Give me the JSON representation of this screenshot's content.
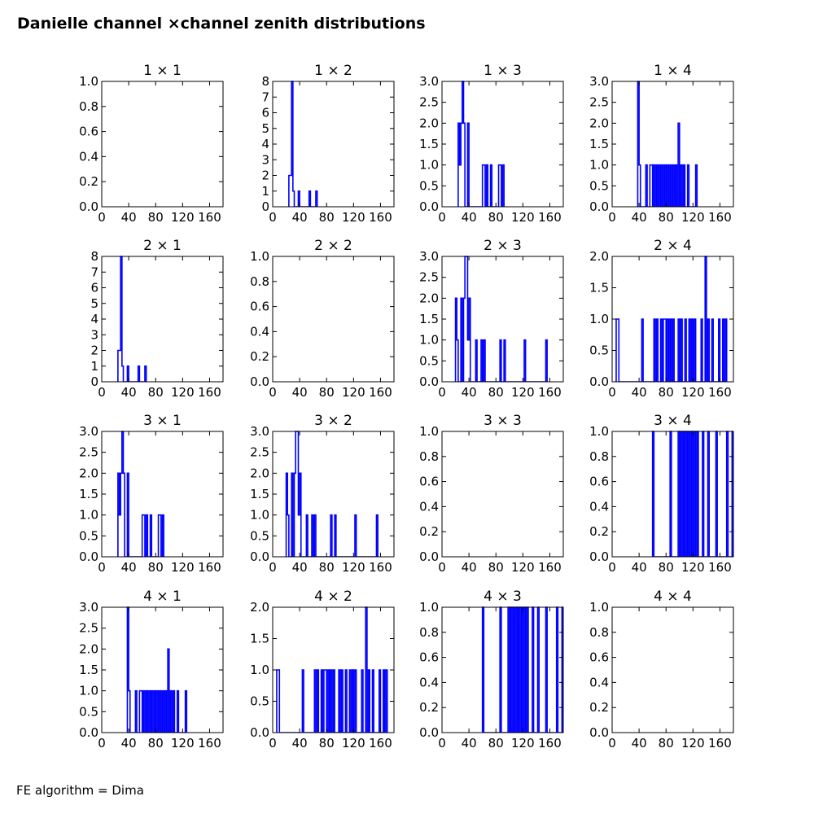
{
  "title": "Danielle channel ×channel zenith distributions",
  "footer": "FE algorithm = Dima",
  "colors": {
    "series": "#0000ff",
    "axes": "#000000",
    "background": "#ffffff"
  },
  "chart_data": [
    {
      "type": "line",
      "title": "1 × 1",
      "xlim": [
        0,
        180
      ],
      "xticks": [
        0,
        40,
        80,
        120,
        160
      ],
      "ylim": [
        0,
        1.0
      ],
      "yticks": [
        "0.0",
        "0.2",
        "0.4",
        "0.6",
        "0.8",
        "1.0"
      ],
      "bins": []
    },
    {
      "type": "line",
      "title": "1 × 2",
      "xlim": [
        0,
        180
      ],
      "xticks": [
        0,
        40,
        80,
        120,
        160
      ],
      "ylim": [
        0,
        8
      ],
      "yticks": [
        "0",
        "1",
        "2",
        "3",
        "4",
        "5",
        "6",
        "7",
        "8"
      ],
      "bins": [
        [
          24,
          26,
          2
        ],
        [
          26,
          28,
          2
        ],
        [
          28,
          30,
          8
        ],
        [
          30,
          32,
          1
        ],
        [
          38,
          40,
          1
        ],
        [
          54,
          56,
          1
        ],
        [
          64,
          66,
          1
        ]
      ]
    },
    {
      "type": "line",
      "title": "1 × 3",
      "xlim": [
        0,
        180
      ],
      "xticks": [
        0,
        40,
        80,
        120,
        160
      ],
      "ylim": [
        0,
        3.0
      ],
      "yticks": [
        "0.0",
        "0.5",
        "1.0",
        "1.5",
        "2.0",
        "2.5",
        "3.0"
      ],
      "bins": [
        [
          24,
          26,
          2
        ],
        [
          26,
          28,
          1
        ],
        [
          28,
          30,
          2
        ],
        [
          30,
          32,
          3
        ],
        [
          32,
          34,
          2
        ],
        [
          38,
          40,
          2
        ],
        [
          60,
          62,
          1
        ],
        [
          62,
          64,
          1
        ],
        [
          66,
          68,
          1
        ],
        [
          72,
          74,
          1
        ],
        [
          84,
          86,
          1
        ],
        [
          86,
          88,
          1
        ],
        [
          90,
          92,
          1
        ]
      ]
    },
    {
      "type": "line",
      "title": "1 × 4",
      "xlim": [
        0,
        180
      ],
      "xticks": [
        0,
        40,
        80,
        120,
        160
      ],
      "ylim": [
        0,
        3.0
      ],
      "yticks": [
        "0.0",
        "0.5",
        "1.0",
        "1.5",
        "2.0",
        "2.5",
        "3.0"
      ],
      "bins": [
        [
          38,
          40,
          3
        ],
        [
          40,
          42,
          1
        ],
        [
          50,
          52,
          1
        ],
        [
          56,
          58,
          1
        ],
        [
          58,
          60,
          1
        ],
        [
          62,
          64,
          1
        ],
        [
          66,
          68,
          1
        ],
        [
          70,
          72,
          1
        ],
        [
          74,
          76,
          1
        ],
        [
          78,
          80,
          1
        ],
        [
          82,
          84,
          1
        ],
        [
          86,
          88,
          1
        ],
        [
          90,
          92,
          1
        ],
        [
          94,
          96,
          1
        ],
        [
          98,
          100,
          2
        ],
        [
          102,
          104,
          1
        ],
        [
          106,
          108,
          1
        ],
        [
          112,
          114,
          1
        ],
        [
          124,
          126,
          1
        ]
      ]
    },
    {
      "type": "line",
      "title": "2 × 1",
      "xlim": [
        0,
        180
      ],
      "xticks": [
        0,
        40,
        80,
        120,
        160
      ],
      "ylim": [
        0,
        8
      ],
      "yticks": [
        "0",
        "1",
        "2",
        "3",
        "4",
        "5",
        "6",
        "7",
        "8"
      ],
      "bins": [
        [
          24,
          26,
          2
        ],
        [
          26,
          28,
          2
        ],
        [
          28,
          30,
          8
        ],
        [
          30,
          32,
          1
        ],
        [
          38,
          40,
          1
        ],
        [
          54,
          56,
          1
        ],
        [
          64,
          66,
          1
        ]
      ]
    },
    {
      "type": "line",
      "title": "2 × 2",
      "xlim": [
        0,
        180
      ],
      "xticks": [
        0,
        40,
        80,
        120,
        160
      ],
      "ylim": [
        0,
        1.0
      ],
      "yticks": [
        "0.0",
        "0.2",
        "0.4",
        "0.6",
        "0.8",
        "1.0"
      ],
      "bins": []
    },
    {
      "type": "line",
      "title": "2 × 3",
      "xlim": [
        0,
        180
      ],
      "xticks": [
        0,
        40,
        80,
        120,
        160
      ],
      "ylim": [
        0,
        3.0
      ],
      "yticks": [
        "0.0",
        "0.5",
        "1.0",
        "1.5",
        "2.0",
        "2.5",
        "3.0"
      ],
      "bins": [
        [
          20,
          22,
          2
        ],
        [
          22,
          24,
          1
        ],
        [
          28,
          30,
          2
        ],
        [
          32,
          34,
          2
        ],
        [
          34,
          36,
          3
        ],
        [
          36,
          38,
          3
        ],
        [
          38,
          40,
          1
        ],
        [
          40,
          42,
          2
        ],
        [
          50,
          52,
          1
        ],
        [
          58,
          60,
          1
        ],
        [
          62,
          64,
          1
        ],
        [
          86,
          88,
          1
        ],
        [
          92,
          94,
          1
        ],
        [
          122,
          124,
          1
        ],
        [
          154,
          156,
          1
        ]
      ]
    },
    {
      "type": "line",
      "title": "2 × 4",
      "xlim": [
        0,
        180
      ],
      "xticks": [
        0,
        40,
        80,
        120,
        160
      ],
      "ylim": [
        0,
        2.0
      ],
      "yticks": [
        "0.0",
        "0.5",
        "1.0",
        "1.5",
        "2.0"
      ],
      "bins": [
        [
          6,
          8,
          1
        ],
        [
          8,
          10,
          1
        ],
        [
          44,
          46,
          1
        ],
        [
          62,
          64,
          1
        ],
        [
          66,
          68,
          1
        ],
        [
          72,
          74,
          1
        ],
        [
          76,
          78,
          1
        ],
        [
          78,
          80,
          1
        ],
        [
          82,
          84,
          1
        ],
        [
          86,
          88,
          1
        ],
        [
          90,
          92,
          1
        ],
        [
          98,
          100,
          1
        ],
        [
          102,
          104,
          1
        ],
        [
          108,
          110,
          1
        ],
        [
          114,
          116,
          1
        ],
        [
          118,
          120,
          1
        ],
        [
          122,
          124,
          1
        ],
        [
          132,
          134,
          1
        ],
        [
          138,
          140,
          2
        ],
        [
          142,
          144,
          1
        ],
        [
          148,
          150,
          1
        ],
        [
          158,
          160,
          1
        ],
        [
          164,
          166,
          1
        ],
        [
          168,
          170,
          1
        ]
      ]
    },
    {
      "type": "line",
      "title": "3 × 1",
      "xlim": [
        0,
        180
      ],
      "xticks": [
        0,
        40,
        80,
        120,
        160
      ],
      "ylim": [
        0,
        3.0
      ],
      "yticks": [
        "0.0",
        "0.5",
        "1.0",
        "1.5",
        "2.0",
        "2.5",
        "3.0"
      ],
      "bins": [
        [
          24,
          26,
          2
        ],
        [
          26,
          28,
          1
        ],
        [
          28,
          30,
          2
        ],
        [
          30,
          32,
          3
        ],
        [
          32,
          34,
          2
        ],
        [
          38,
          40,
          2
        ],
        [
          60,
          62,
          1
        ],
        [
          62,
          64,
          1
        ],
        [
          66,
          68,
          1
        ],
        [
          72,
          74,
          1
        ],
        [
          84,
          86,
          1
        ],
        [
          86,
          88,
          1
        ],
        [
          90,
          92,
          1
        ]
      ]
    },
    {
      "type": "line",
      "title": "3 × 2",
      "xlim": [
        0,
        180
      ],
      "xticks": [
        0,
        40,
        80,
        120,
        160
      ],
      "ylim": [
        0,
        3.0
      ],
      "yticks": [
        "0.0",
        "0.5",
        "1.0",
        "1.5",
        "2.0",
        "2.5",
        "3.0"
      ],
      "bins": [
        [
          20,
          22,
          2
        ],
        [
          22,
          24,
          1
        ],
        [
          28,
          30,
          2
        ],
        [
          32,
          34,
          2
        ],
        [
          34,
          36,
          3
        ],
        [
          36,
          38,
          3
        ],
        [
          38,
          40,
          1
        ],
        [
          40,
          42,
          2
        ],
        [
          50,
          52,
          1
        ],
        [
          58,
          60,
          1
        ],
        [
          62,
          64,
          1
        ],
        [
          86,
          88,
          1
        ],
        [
          92,
          94,
          1
        ],
        [
          122,
          124,
          1
        ],
        [
          154,
          156,
          1
        ]
      ]
    },
    {
      "type": "line",
      "title": "3 × 3",
      "xlim": [
        0,
        180
      ],
      "xticks": [
        0,
        40,
        80,
        120,
        160
      ],
      "ylim": [
        0,
        1.0
      ],
      "yticks": [
        "0.0",
        "0.2",
        "0.4",
        "0.6",
        "0.8",
        "1.0"
      ],
      "bins": []
    },
    {
      "type": "line",
      "title": "3 × 4",
      "xlim": [
        0,
        180
      ],
      "xticks": [
        0,
        40,
        80,
        120,
        160
      ],
      "ylim": [
        0,
        1.0
      ],
      "yticks": [
        "0.0",
        "0.2",
        "0.4",
        "0.6",
        "0.8",
        "1.0"
      ],
      "bins": [
        [
          60,
          62,
          1
        ],
        [
          86,
          88,
          1
        ],
        [
          98,
          100,
          1
        ],
        [
          102,
          104,
          1
        ],
        [
          106,
          108,
          1
        ],
        [
          110,
          112,
          1
        ],
        [
          114,
          116,
          1
        ],
        [
          118,
          120,
          1
        ],
        [
          122,
          124,
          1
        ],
        [
          126,
          128,
          1
        ],
        [
          134,
          136,
          1
        ],
        [
          142,
          144,
          1
        ],
        [
          154,
          156,
          1
        ],
        [
          170,
          172,
          1
        ],
        [
          178,
          180,
          1
        ]
      ]
    },
    {
      "type": "line",
      "title": "4 × 1",
      "xlim": [
        0,
        180
      ],
      "xticks": [
        0,
        40,
        80,
        120,
        160
      ],
      "ylim": [
        0,
        3.0
      ],
      "yticks": [
        "0.0",
        "0.5",
        "1.0",
        "1.5",
        "2.0",
        "2.5",
        "3.0"
      ],
      "bins": [
        [
          38,
          40,
          3
        ],
        [
          40,
          42,
          1
        ],
        [
          50,
          52,
          1
        ],
        [
          56,
          58,
          1
        ],
        [
          58,
          60,
          1
        ],
        [
          62,
          64,
          1
        ],
        [
          66,
          68,
          1
        ],
        [
          70,
          72,
          1
        ],
        [
          74,
          76,
          1
        ],
        [
          78,
          80,
          1
        ],
        [
          82,
          84,
          1
        ],
        [
          86,
          88,
          1
        ],
        [
          90,
          92,
          1
        ],
        [
          94,
          96,
          1
        ],
        [
          98,
          100,
          2
        ],
        [
          102,
          104,
          1
        ],
        [
          106,
          108,
          1
        ],
        [
          112,
          114,
          1
        ],
        [
          124,
          126,
          1
        ]
      ]
    },
    {
      "type": "line",
      "title": "4 × 2",
      "xlim": [
        0,
        180
      ],
      "xticks": [
        0,
        40,
        80,
        120,
        160
      ],
      "ylim": [
        0,
        2.0
      ],
      "yticks": [
        "0.0",
        "0.5",
        "1.0",
        "1.5",
        "2.0"
      ],
      "bins": [
        [
          6,
          8,
          1
        ],
        [
          8,
          10,
          1
        ],
        [
          44,
          46,
          1
        ],
        [
          62,
          64,
          1
        ],
        [
          66,
          68,
          1
        ],
        [
          72,
          74,
          1
        ],
        [
          76,
          78,
          1
        ],
        [
          78,
          80,
          1
        ],
        [
          82,
          84,
          1
        ],
        [
          86,
          88,
          1
        ],
        [
          90,
          92,
          1
        ],
        [
          98,
          100,
          1
        ],
        [
          102,
          104,
          1
        ],
        [
          108,
          110,
          1
        ],
        [
          114,
          116,
          1
        ],
        [
          118,
          120,
          1
        ],
        [
          122,
          124,
          1
        ],
        [
          132,
          134,
          1
        ],
        [
          138,
          140,
          2
        ],
        [
          142,
          144,
          1
        ],
        [
          148,
          150,
          1
        ],
        [
          158,
          160,
          1
        ],
        [
          164,
          166,
          1
        ],
        [
          168,
          170,
          1
        ]
      ]
    },
    {
      "type": "line",
      "title": "4 × 3",
      "xlim": [
        0,
        180
      ],
      "xticks": [
        0,
        40,
        80,
        120,
        160
      ],
      "ylim": [
        0,
        1.0
      ],
      "yticks": [
        "0.0",
        "0.2",
        "0.4",
        "0.6",
        "0.8",
        "1.0"
      ],
      "bins": [
        [
          60,
          62,
          1
        ],
        [
          86,
          88,
          1
        ],
        [
          98,
          100,
          1
        ],
        [
          102,
          104,
          1
        ],
        [
          106,
          108,
          1
        ],
        [
          110,
          112,
          1
        ],
        [
          114,
          116,
          1
        ],
        [
          118,
          120,
          1
        ],
        [
          122,
          124,
          1
        ],
        [
          126,
          128,
          1
        ],
        [
          134,
          136,
          1
        ],
        [
          142,
          144,
          1
        ],
        [
          154,
          156,
          1
        ],
        [
          170,
          172,
          1
        ],
        [
          178,
          180,
          1
        ]
      ]
    },
    {
      "type": "line",
      "title": "4 × 4",
      "xlim": [
        0,
        180
      ],
      "xticks": [
        0,
        40,
        80,
        120,
        160
      ],
      "ylim": [
        0,
        1.0
      ],
      "yticks": [
        "0.0",
        "0.2",
        "0.4",
        "0.6",
        "0.8",
        "1.0"
      ],
      "bins": []
    }
  ]
}
